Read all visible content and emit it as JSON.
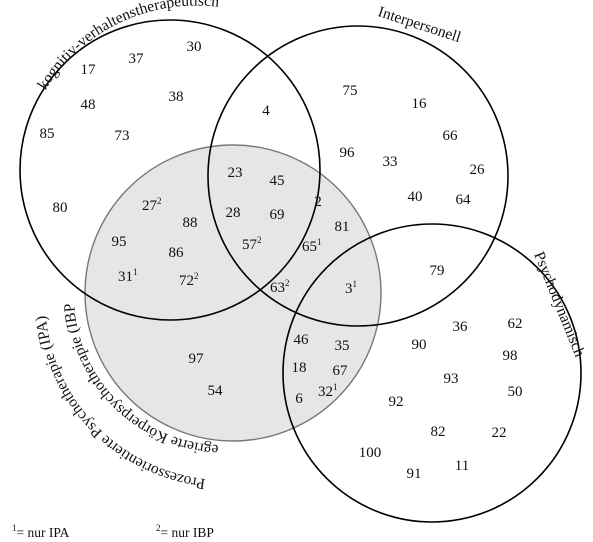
{
  "sets": {
    "kvt": {
      "label": "kognitiv-verhaltenstherapeutisch"
    },
    "interpersonal": {
      "label": "Interpersonell"
    },
    "psychodynamic": {
      "label": "Psychodynamisch"
    },
    "ibp_ipa": {
      "label_line1": "Integrierte Körperpsychotherapie (IBP) &",
      "label_line2": "Prozessorientierte Psychotherapie (IPA)",
      "fill": "#e6e6e6"
    }
  },
  "items": [
    {
      "value": "30"
    },
    {
      "value": "37"
    },
    {
      "value": "17"
    },
    {
      "value": "48"
    },
    {
      "value": "38"
    },
    {
      "value": "85"
    },
    {
      "value": "73"
    },
    {
      "value": "80"
    },
    {
      "value": "4"
    },
    {
      "value": "75"
    },
    {
      "value": "16"
    },
    {
      "value": "66"
    },
    {
      "value": "96"
    },
    {
      "value": "33"
    },
    {
      "value": "26"
    },
    {
      "value": "40"
    },
    {
      "value": "64"
    },
    {
      "value": "23"
    },
    {
      "value": "45"
    },
    {
      "value": "28"
    },
    {
      "value": "69"
    },
    {
      "value": "2"
    },
    {
      "value": "27",
      "sup": "2"
    },
    {
      "value": "88"
    },
    {
      "value": "95"
    },
    {
      "value": "86"
    },
    {
      "value": "57",
      "sup": "2"
    },
    {
      "value": "81"
    },
    {
      "value": "65",
      "sup": "1"
    },
    {
      "value": "31",
      "sup": "1"
    },
    {
      "value": "72",
      "sup": "2"
    },
    {
      "value": "63",
      "sup": "2"
    },
    {
      "value": "3",
      "sup": "1"
    },
    {
      "value": "79"
    },
    {
      "value": "97"
    },
    {
      "value": "54"
    },
    {
      "value": "46"
    },
    {
      "value": "35"
    },
    {
      "value": "18"
    },
    {
      "value": "67"
    },
    {
      "value": "6"
    },
    {
      "value": "32",
      "sup": "1"
    },
    {
      "value": "90"
    },
    {
      "value": "36"
    },
    {
      "value": "62"
    },
    {
      "value": "98"
    },
    {
      "value": "93"
    },
    {
      "value": "50"
    },
    {
      "value": "92"
    },
    {
      "value": "82"
    },
    {
      "value": "22"
    },
    {
      "value": "100"
    },
    {
      "value": "11"
    },
    {
      "value": "91"
    }
  ],
  "legend": {
    "one": {
      "sup": "1",
      "text": "= nur IPA"
    },
    "two": {
      "sup": "2",
      "text": "= nur IBP"
    }
  }
}
